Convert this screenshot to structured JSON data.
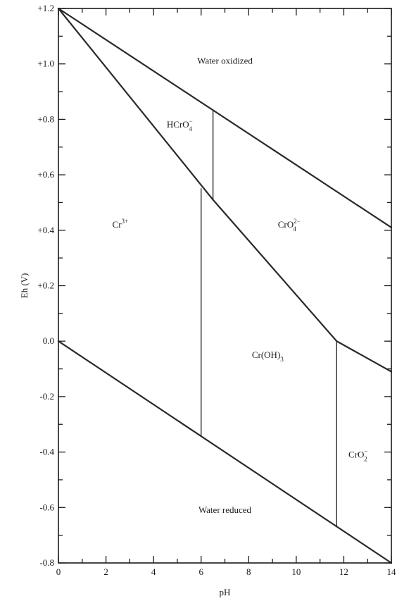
{
  "chart_data": {
    "type": "line",
    "title": "",
    "xlabel": "pH",
    "ylabel": "Eh (V)",
    "xlim": [
      0,
      14
    ],
    "ylim": [
      -0.8,
      1.2
    ],
    "grid": false,
    "x_ticks": [
      {
        "value": 0,
        "label": "0"
      },
      {
        "value": 2,
        "label": "2"
      },
      {
        "value": 4,
        "label": "4"
      },
      {
        "value": 6,
        "label": "6"
      },
      {
        "value": 8,
        "label": "8"
      },
      {
        "value": 10,
        "label": "10"
      },
      {
        "value": 12,
        "label": "12"
      },
      {
        "value": 14,
        "label": "14"
      }
    ],
    "y_ticks": [
      {
        "value": 1.2,
        "label": "+1.2"
      },
      {
        "value": 1.0,
        "label": "+1.0"
      },
      {
        "value": 0.8,
        "label": "+0.8"
      },
      {
        "value": 0.6,
        "label": "+0.6"
      },
      {
        "value": 0.4,
        "label": "+0.4"
      },
      {
        "value": 0.2,
        "label": "+0.2"
      },
      {
        "value": 0.0,
        "label": "0.0"
      },
      {
        "value": -0.2,
        "label": "-0.2"
      },
      {
        "value": -0.4,
        "label": "-0.4"
      },
      {
        "value": -0.6,
        "label": "-0.6"
      },
      {
        "value": -0.8,
        "label": "-0.8"
      }
    ],
    "series": [
      {
        "x": [
          0,
          14
        ],
        "y": [
          1.2,
          0.41
        ]
      },
      {
        "x": [
          0,
          14
        ],
        "y": [
          0.0,
          -0.8
        ]
      },
      {
        "x": [
          0,
          6.5,
          11.7,
          14
        ],
        "y": [
          1.2,
          0.51,
          0.0,
          -0.11
        ]
      },
      {
        "x": [
          6.5,
          6.5
        ],
        "y": [
          0.51,
          0.83
        ]
      },
      {
        "x": [
          6.0,
          6.0
        ],
        "y": [
          0.55,
          -0.34
        ]
      },
      {
        "x": [
          11.7,
          11.7
        ],
        "y": [
          0.0,
          -0.67
        ]
      }
    ],
    "region_labels": [
      {
        "text": "Water oxidized",
        "x": 7.0,
        "y": 1.0
      },
      {
        "text": "Water reduced",
        "x": 7.0,
        "y": -0.62
      }
    ],
    "species_labels": [
      {
        "base": "HCrO",
        "sub": "4",
        "sup": "−",
        "x": 5.1,
        "y": 0.77
      },
      {
        "base": "Cr",
        "sub": "",
        "sup": "3+",
        "x": 2.6,
        "y": 0.41
      },
      {
        "base": "CrO",
        "sub": "4",
        "sup": "2−",
        "x": 9.7,
        "y": 0.41
      },
      {
        "base": "Cr(OH)",
        "sub": "3",
        "sup": "",
        "x": 8.8,
        "y": -0.06
      },
      {
        "base": "CrO",
        "sub": "2",
        "sup": "−",
        "x": 12.6,
        "y": -0.42
      }
    ]
  }
}
